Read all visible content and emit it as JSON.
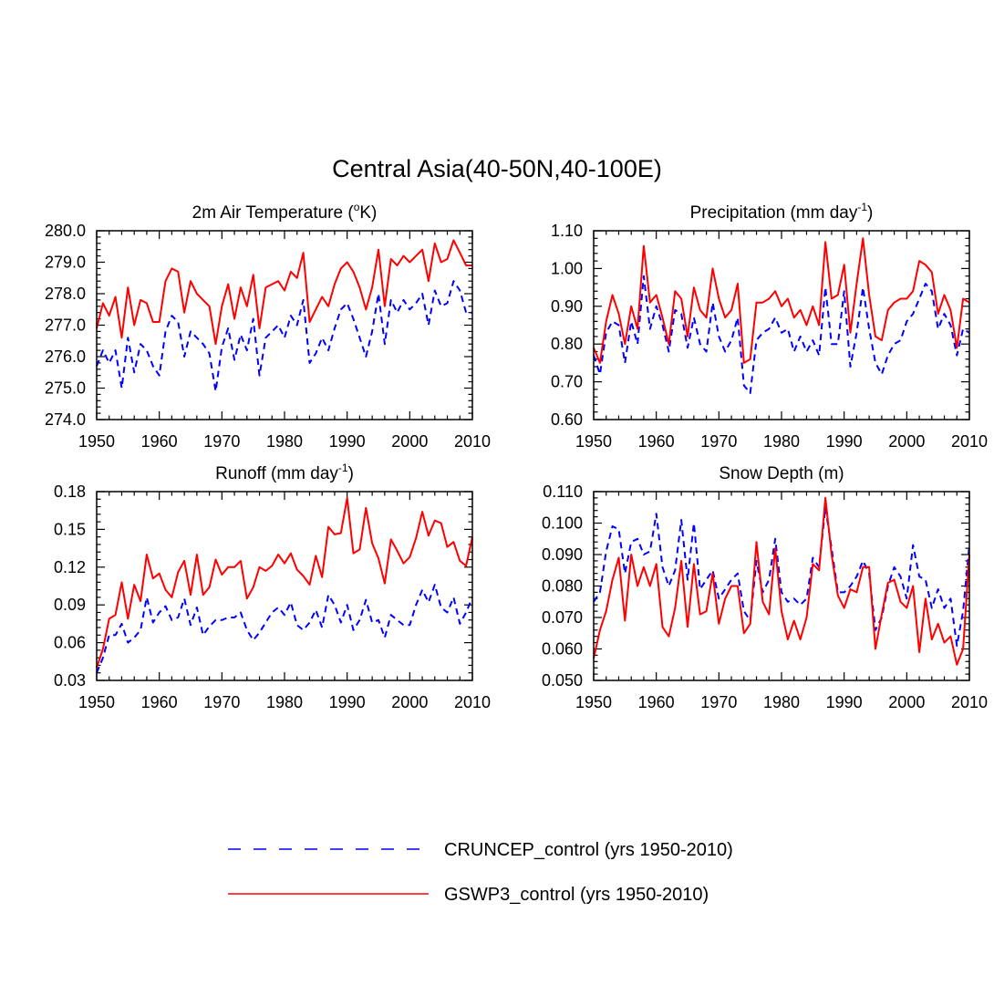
{
  "title": "Central Asia(40-50N,40-100E)",
  "colors": {
    "cruncep": "#0000ff",
    "gswp3": "#ff0000"
  },
  "legend": [
    {
      "label": "CRUNCEP_control (yrs 1950-2010)",
      "series": "cruncep",
      "style": "dashed"
    },
    {
      "label": "GSWP3_control (yrs 1950-2010)",
      "series": "gswp3",
      "style": "solid"
    }
  ],
  "chart_data": [
    {
      "type": "line",
      "title_main": "2m Air Temperature (",
      "title_sup": "o",
      "title_tail": "K)",
      "xlim": [
        1950,
        2010
      ],
      "ylim": [
        274.0,
        280.0
      ],
      "xticks": [
        "1950",
        "1960",
        "1970",
        "1980",
        "1990",
        "2000",
        "2010"
      ],
      "yticks": [
        "274.0",
        "275.0",
        "276.0",
        "277.0",
        "278.0",
        "279.0",
        "280.0"
      ],
      "x_start": 1950,
      "series": [
        {
          "name": "CRUNCEP_control",
          "key": "cruncep",
          "values": [
            275.7,
            276.2,
            275.8,
            276.2,
            275.0,
            276.6,
            275.5,
            276.4,
            276.2,
            275.7,
            275.4,
            276.8,
            277.3,
            277.1,
            276.0,
            276.8,
            276.6,
            276.4,
            276.1,
            274.9,
            276.3,
            276.9,
            275.9,
            276.7,
            276.2,
            277.2,
            275.4,
            276.6,
            276.8,
            277.0,
            276.6,
            277.3,
            277.0,
            277.8,
            275.8,
            276.1,
            276.6,
            276.2,
            276.9,
            277.5,
            277.7,
            277.2,
            276.6,
            276.0,
            276.8,
            278.0,
            276.4,
            277.8,
            277.4,
            277.8,
            277.5,
            277.7,
            278.0,
            277.0,
            278.1,
            277.6,
            277.7,
            278.4,
            278.1,
            277.4,
            277.4
          ]
        },
        {
          "name": "GSWP3_control",
          "key": "gswp3",
          "values": [
            276.9,
            277.7,
            277.3,
            277.9,
            276.6,
            278.2,
            277.0,
            277.8,
            277.7,
            277.1,
            277.1,
            278.4,
            278.8,
            278.7,
            277.4,
            278.4,
            278.0,
            277.8,
            277.6,
            276.4,
            277.6,
            278.3,
            277.2,
            278.2,
            277.6,
            278.6,
            276.9,
            278.2,
            278.3,
            278.4,
            278.1,
            278.7,
            278.5,
            279.3,
            277.1,
            277.5,
            277.9,
            277.6,
            278.3,
            278.8,
            279.0,
            278.7,
            278.2,
            277.5,
            278.2,
            279.4,
            277.6,
            279.1,
            278.9,
            279.2,
            279.0,
            279.2,
            279.4,
            278.4,
            279.6,
            279.0,
            279.1,
            279.7,
            279.3,
            278.9,
            278.9
          ]
        }
      ]
    },
    {
      "type": "line",
      "title_main": "Precipitation (mm day",
      "title_sup": "-1",
      "title_tail": ")",
      "xlim": [
        1950,
        2010
      ],
      "ylim": [
        0.6,
        1.1
      ],
      "xticks": [
        "1950",
        "1960",
        "1970",
        "1980",
        "1990",
        "2000",
        "2010"
      ],
      "yticks": [
        "0.60",
        "0.70",
        "0.80",
        "0.90",
        "1.00",
        "1.10"
      ],
      "x_start": 1950,
      "series": [
        {
          "name": "CRUNCEP_control",
          "key": "cruncep",
          "values": [
            0.77,
            0.72,
            0.83,
            0.86,
            0.85,
            0.75,
            0.86,
            0.8,
            0.98,
            0.84,
            0.9,
            0.85,
            0.78,
            0.89,
            0.88,
            0.79,
            0.87,
            0.8,
            0.78,
            0.91,
            0.82,
            0.78,
            0.81,
            0.87,
            0.69,
            0.67,
            0.81,
            0.83,
            0.84,
            0.87,
            0.83,
            0.84,
            0.78,
            0.82,
            0.78,
            0.81,
            0.77,
            0.95,
            0.8,
            0.8,
            0.94,
            0.74,
            0.83,
            0.95,
            0.84,
            0.75,
            0.72,
            0.77,
            0.8,
            0.81,
            0.86,
            0.88,
            0.92,
            0.96,
            0.94,
            0.84,
            0.88,
            0.85,
            0.77,
            0.84,
            0.83
          ]
        },
        {
          "name": "GSWP3_control",
          "key": "gswp3",
          "values": [
            0.79,
            0.75,
            0.86,
            0.93,
            0.88,
            0.8,
            0.9,
            0.84,
            1.06,
            0.91,
            0.93,
            0.87,
            0.8,
            0.94,
            0.92,
            0.82,
            0.95,
            0.89,
            0.87,
            1.0,
            0.92,
            0.87,
            0.89,
            0.96,
            0.75,
            0.76,
            0.91,
            0.91,
            0.92,
            0.94,
            0.9,
            0.92,
            0.87,
            0.89,
            0.85,
            0.9,
            0.85,
            1.07,
            0.92,
            0.93,
            1.01,
            0.83,
            0.96,
            1.08,
            0.93,
            0.82,
            0.81,
            0.89,
            0.91,
            0.92,
            0.92,
            0.94,
            1.02,
            1.01,
            0.99,
            0.88,
            0.93,
            0.89,
            0.79,
            0.92,
            0.91
          ]
        }
      ]
    },
    {
      "type": "line",
      "title_main": "Runoff (mm day",
      "title_sup": "-1",
      "title_tail": ")",
      "xlim": [
        1950,
        2010
      ],
      "ylim": [
        0.03,
        0.18
      ],
      "xticks": [
        "1950",
        "1960",
        "1970",
        "1980",
        "1990",
        "2000",
        "2010"
      ],
      "yticks": [
        "0.03",
        "0.06",
        "0.09",
        "0.12",
        "0.15",
        "0.18"
      ],
      "x_start": 1950,
      "series": [
        {
          "name": "CRUNCEP_control",
          "key": "cruncep",
          "values": [
            0.036,
            0.048,
            0.066,
            0.066,
            0.075,
            0.06,
            0.064,
            0.07,
            0.096,
            0.076,
            0.084,
            0.089,
            0.078,
            0.08,
            0.095,
            0.074,
            0.088,
            0.066,
            0.073,
            0.078,
            0.078,
            0.08,
            0.08,
            0.084,
            0.07,
            0.062,
            0.068,
            0.076,
            0.084,
            0.088,
            0.082,
            0.092,
            0.074,
            0.07,
            0.076,
            0.086,
            0.072,
            0.098,
            0.09,
            0.076,
            0.09,
            0.07,
            0.078,
            0.094,
            0.076,
            0.078,
            0.064,
            0.082,
            0.078,
            0.074,
            0.074,
            0.09,
            0.102,
            0.092,
            0.106,
            0.088,
            0.084,
            0.096,
            0.075,
            0.084,
            0.096
          ]
        },
        {
          "name": "GSWP3_control",
          "key": "gswp3",
          "values": [
            0.04,
            0.055,
            0.079,
            0.082,
            0.108,
            0.079,
            0.106,
            0.093,
            0.13,
            0.111,
            0.115,
            0.102,
            0.096,
            0.116,
            0.125,
            0.098,
            0.13,
            0.098,
            0.104,
            0.126,
            0.114,
            0.12,
            0.12,
            0.125,
            0.095,
            0.104,
            0.12,
            0.117,
            0.121,
            0.13,
            0.123,
            0.131,
            0.118,
            0.113,
            0.106,
            0.129,
            0.112,
            0.152,
            0.146,
            0.147,
            0.175,
            0.131,
            0.134,
            0.167,
            0.139,
            0.127,
            0.107,
            0.142,
            0.133,
            0.123,
            0.128,
            0.143,
            0.164,
            0.145,
            0.157,
            0.155,
            0.136,
            0.14,
            0.125,
            0.121,
            0.144
          ]
        }
      ]
    },
    {
      "type": "line",
      "title_main": "Snow Depth (m)",
      "title_sup": "",
      "title_tail": "",
      "xlim": [
        1950,
        2010
      ],
      "ylim": [
        0.05,
        0.11
      ],
      "xticks": [
        "1950",
        "1960",
        "1970",
        "1980",
        "1990",
        "2000",
        "2010"
      ],
      "yticks": [
        "0.050",
        "0.060",
        "0.070",
        "0.080",
        "0.090",
        "0.100",
        "0.110"
      ],
      "x_start": 1950,
      "series": [
        {
          "name": "CRUNCEP_control",
          "key": "cruncep",
          "values": [
            0.075,
            0.078,
            0.091,
            0.099,
            0.098,
            0.084,
            0.094,
            0.095,
            0.09,
            0.091,
            0.103,
            0.086,
            0.08,
            0.085,
            0.101,
            0.082,
            0.1,
            0.079,
            0.082,
            0.085,
            0.076,
            0.079,
            0.082,
            0.084,
            0.072,
            0.069,
            0.088,
            0.078,
            0.082,
            0.095,
            0.078,
            0.075,
            0.076,
            0.074,
            0.076,
            0.089,
            0.086,
            0.105,
            0.092,
            0.078,
            0.078,
            0.08,
            0.083,
            0.088,
            0.084,
            0.066,
            0.07,
            0.08,
            0.086,
            0.083,
            0.076,
            0.093,
            0.083,
            0.082,
            0.073,
            0.079,
            0.073,
            0.076,
            0.061,
            0.072,
            0.093
          ]
        },
        {
          "name": "GSWP3_control",
          "key": "gswp3",
          "values": [
            0.057,
            0.066,
            0.072,
            0.082,
            0.089,
            0.069,
            0.09,
            0.08,
            0.086,
            0.08,
            0.087,
            0.067,
            0.064,
            0.073,
            0.088,
            0.067,
            0.087,
            0.071,
            0.072,
            0.084,
            0.068,
            0.076,
            0.08,
            0.08,
            0.065,
            0.068,
            0.094,
            0.075,
            0.071,
            0.092,
            0.072,
            0.063,
            0.069,
            0.063,
            0.07,
            0.087,
            0.085,
            0.108,
            0.09,
            0.077,
            0.073,
            0.079,
            0.078,
            0.086,
            0.086,
            0.06,
            0.071,
            0.081,
            0.082,
            0.075,
            0.073,
            0.08,
            0.059,
            0.076,
            0.063,
            0.068,
            0.062,
            0.064,
            0.055,
            0.06,
            0.09
          ]
        }
      ]
    }
  ]
}
